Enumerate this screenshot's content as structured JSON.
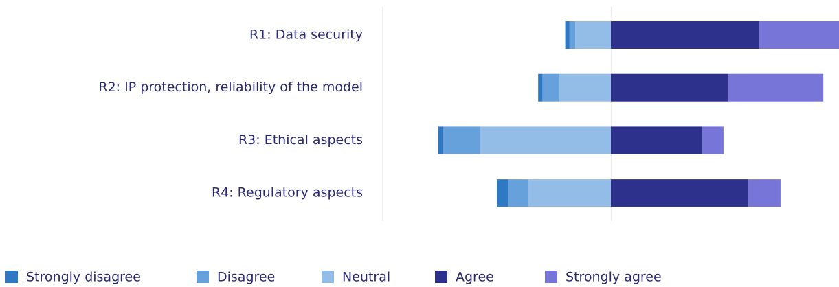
{
  "chart_data": {
    "type": "diverging-bar",
    "categories": [
      "R1: Data security",
      "R2: IP protection, reliability of the model",
      "R3: Ethical aspects",
      "R4: Regulatory aspects"
    ],
    "series": [
      {
        "name": "Strongly disagree",
        "color": "#2f78c4",
        "values": [
          1.5,
          1.5,
          1.5,
          4
        ]
      },
      {
        "name": "Disagree",
        "color": "#67a1db",
        "values": [
          2,
          6,
          13,
          7
        ]
      },
      {
        "name": "Neutral",
        "color": "#93bce6",
        "values": [
          12.5,
          18,
          46,
          29
        ]
      },
      {
        "name": "Agree",
        "color": "#2e318c",
        "values": [
          52,
          41,
          32,
          48
        ]
      },
      {
        "name": "Strongly agree",
        "color": "#7776d8",
        "values": [
          28,
          33.5,
          7.5,
          11.5
        ]
      }
    ],
    "xlim": [
      -80,
      80
    ]
  }
}
